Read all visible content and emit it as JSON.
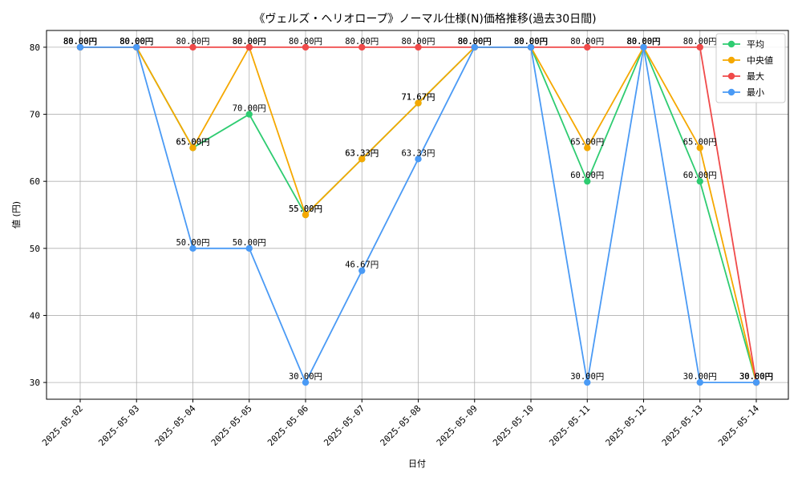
{
  "chart_data": {
    "type": "line",
    "title": "《ヴェルズ・ヘリオロープ》ノーマル仕様(N)価格推移(過去30日間)",
    "xlabel": "日付",
    "ylabel": "値 (円)",
    "ylim": [
      27.5,
      82.5
    ],
    "yticks": [
      30,
      40,
      50,
      60,
      70,
      80
    ],
    "grid": true,
    "legend_position": "top-right",
    "value_suffix": "円",
    "categories": [
      "2025-05-02",
      "2025-05-03",
      "2025-05-04",
      "2025-05-05",
      "2025-05-06",
      "2025-05-07",
      "2025-05-08",
      "2025-05-09",
      "2025-05-10",
      "2025-05-11",
      "2025-05-12",
      "2025-05-13",
      "2025-05-14"
    ],
    "series": [
      {
        "name": "平均",
        "color": "#2ecc71",
        "values": [
          80,
          80,
          65,
          70,
          55,
          63.33,
          71.67,
          80,
          80,
          60,
          80,
          60,
          30
        ]
      },
      {
        "name": "中央値",
        "color": "#f5a800",
        "values": [
          80,
          80,
          65,
          80,
          55,
          63.33,
          71.67,
          80,
          80,
          65,
          80,
          65,
          30
        ]
      },
      {
        "name": "最大",
        "color": "#f04a4a",
        "values": [
          80,
          80,
          80,
          80,
          80,
          80,
          80,
          80,
          80,
          80,
          80,
          80,
          30
        ]
      },
      {
        "name": "最小",
        "color": "#4a9af5",
        "values": [
          80,
          80,
          50,
          50,
          30,
          46.67,
          63.33,
          80,
          80,
          30,
          80,
          30,
          30
        ]
      }
    ]
  }
}
